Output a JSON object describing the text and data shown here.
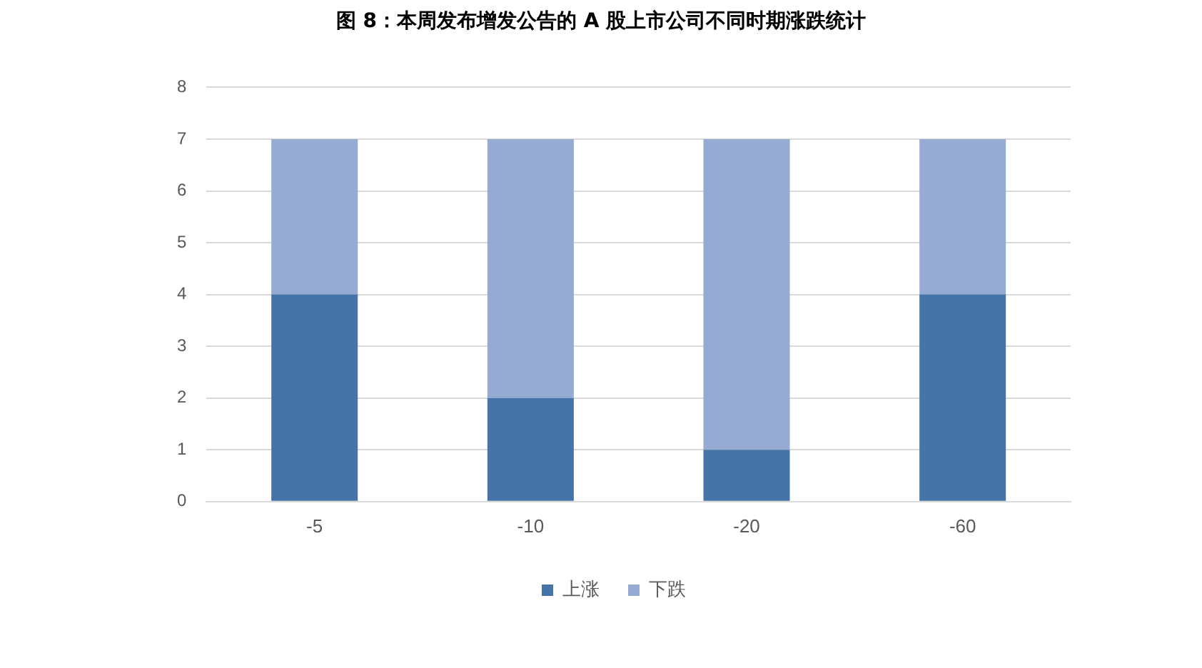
{
  "chart_data": {
    "type": "bar",
    "title": "图 8：本周发布增发公告的 A 股上市公司不同时期涨跌统计",
    "categories": [
      "-5",
      "-10",
      "-20",
      "-60"
    ],
    "series": [
      {
        "name": "上涨",
        "color": "#4674a8",
        "values": [
          4,
          2,
          1,
          4
        ]
      },
      {
        "name": "下跌",
        "color": "#95abd2",
        "values": [
          3,
          5,
          6,
          3
        ]
      }
    ],
    "stacked": true,
    "ylim": [
      0,
      8
    ],
    "yticks": [
      0,
      1,
      2,
      3,
      4,
      5,
      6,
      7,
      8
    ],
    "grid": "y",
    "legend": "bottom"
  }
}
